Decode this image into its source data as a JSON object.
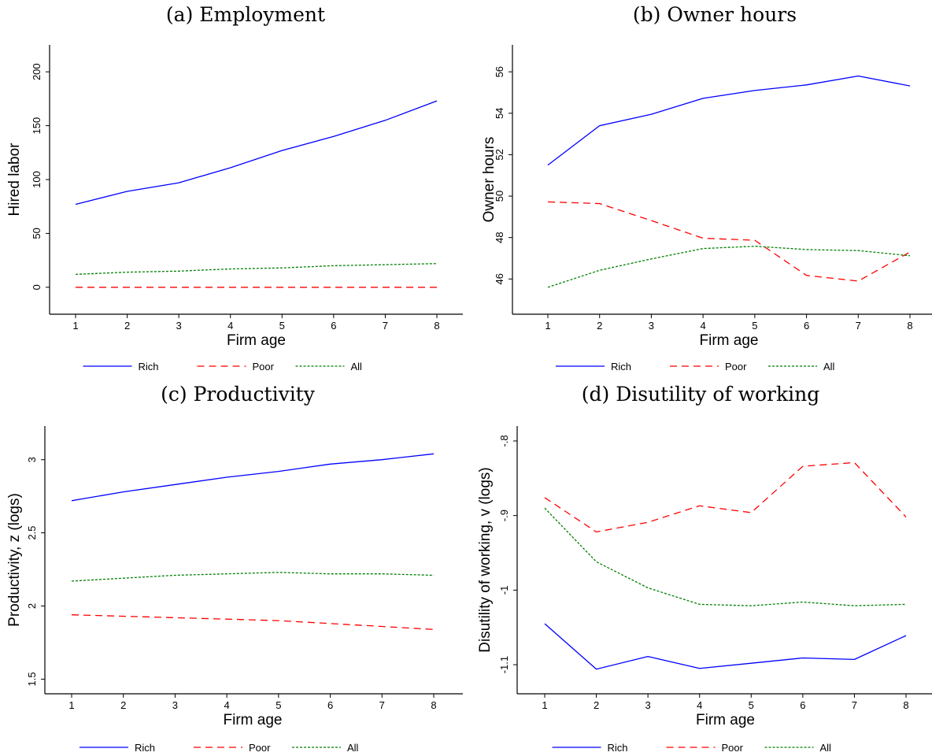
{
  "chart_data": [
    {
      "type": "line",
      "panel_title": "(a) Employment",
      "xlabel": "Firm age",
      "ylabel": "Hired labor",
      "x": [
        1,
        2,
        3,
        4,
        5,
        6,
        7,
        8
      ],
      "xticks": [
        "1",
        "2",
        "3",
        "4",
        "5",
        "6",
        "7",
        "8"
      ],
      "ylim": [
        -25,
        225
      ],
      "yticks": [
        0,
        50,
        100,
        150,
        200
      ],
      "ytick_labels": [
        "0",
        "50",
        "100",
        "150",
        "200"
      ],
      "grid": false,
      "legend_position": "bottom",
      "series": [
        {
          "name": "Rich",
          "color": "#0000ff",
          "style": "solid",
          "values": [
            77,
            89,
            97,
            111,
            127,
            140,
            155,
            173
          ]
        },
        {
          "name": "Poor",
          "color": "#ff0000",
          "style": "dashed",
          "values": [
            0,
            0,
            0,
            0,
            0,
            0,
            0,
            0
          ]
        },
        {
          "name": "All",
          "color": "#008000",
          "style": "dotted",
          "values": [
            12,
            14,
            15,
            17,
            18,
            20,
            21,
            22
          ]
        }
      ]
    },
    {
      "type": "line",
      "panel_title": "(b) Owner hours",
      "xlabel": "Firm age",
      "ylabel": "Owner hours",
      "x": [
        1,
        2,
        3,
        4,
        5,
        6,
        7,
        8
      ],
      "xticks": [
        "1",
        "2",
        "3",
        "4",
        "5",
        "6",
        "7",
        "8"
      ],
      "ylim": [
        44.3,
        57.3
      ],
      "yticks": [
        46,
        48,
        50,
        52,
        54,
        56
      ],
      "ytick_labels": [
        "46",
        "48",
        "50",
        "52",
        "54",
        "56"
      ],
      "grid": false,
      "legend_position": "bottom",
      "series": [
        {
          "name": "Rich",
          "color": "#0000ff",
          "style": "solid",
          "values": [
            51.5,
            53.4,
            53.95,
            54.72,
            55.1,
            55.37,
            55.8,
            55.32
          ]
        },
        {
          "name": "Poor",
          "color": "#ff0000",
          "style": "dashed",
          "values": [
            49.72,
            49.64,
            48.82,
            47.97,
            47.87,
            46.17,
            45.9,
            47.3
          ]
        },
        {
          "name": "All",
          "color": "#008000",
          "style": "dotted",
          "values": [
            45.6,
            46.42,
            46.97,
            47.47,
            47.58,
            47.42,
            47.37,
            47.12
          ]
        }
      ]
    },
    {
      "type": "line",
      "panel_title": "(c) Productivity",
      "xlabel": "Firm age",
      "ylabel": "Productivity, z (logs)",
      "x": [
        1,
        2,
        3,
        4,
        5,
        6,
        7,
        8
      ],
      "xticks": [
        "1",
        "2",
        "3",
        "4",
        "5",
        "6",
        "7",
        "8"
      ],
      "ylim": [
        1.4,
        3.23
      ],
      "yticks": [
        1.5,
        2,
        2.5,
        3
      ],
      "ytick_labels": [
        "1.5",
        "2",
        "2.5",
        "3"
      ],
      "grid": false,
      "legend_position": "bottom",
      "series": [
        {
          "name": "Rich",
          "color": "#0000ff",
          "style": "solid",
          "values": [
            2.72,
            2.78,
            2.83,
            2.88,
            2.92,
            2.97,
            3.0,
            3.04
          ]
        },
        {
          "name": "Poor",
          "color": "#ff0000",
          "style": "dashed",
          "values": [
            1.94,
            1.93,
            1.92,
            1.91,
            1.9,
            1.88,
            1.86,
            1.84
          ]
        },
        {
          "name": "All",
          "color": "#008000",
          "style": "dotted",
          "values": [
            2.17,
            2.19,
            2.21,
            2.22,
            2.23,
            2.22,
            2.22,
            2.21
          ]
        }
      ]
    },
    {
      "type": "line",
      "panel_title": "(d) Disutility of working",
      "xlabel": "Firm age",
      "ylabel": "Disutility of working, v (logs)",
      "x": [
        1,
        2,
        3,
        4,
        5,
        6,
        7,
        8
      ],
      "xticks": [
        "1",
        "2",
        "3",
        "4",
        "5",
        "6",
        "7",
        "8"
      ],
      "ylim": [
        -1.139,
        -0.78
      ],
      "yticks": [
        -1.1,
        -1,
        -0.9,
        -0.8
      ],
      "ytick_labels": [
        "-1.1",
        "-1",
        "-.9",
        "-.8"
      ],
      "grid": false,
      "legend_position": "bottom",
      "series": [
        {
          "name": "Rich",
          "color": "#0000ff",
          "style": "solid",
          "values": [
            -1.045,
            -1.106,
            -1.089,
            -1.105,
            -1.098,
            -1.091,
            -1.093,
            -1.061
          ]
        },
        {
          "name": "Poor",
          "color": "#ff0000",
          "style": "dashed",
          "values": [
            -0.876,
            -0.922,
            -0.909,
            -0.887,
            -0.896,
            -0.834,
            -0.829,
            -0.902
          ]
        },
        {
          "name": "All",
          "color": "#008000",
          "style": "dotted",
          "values": [
            -0.89,
            -0.962,
            -0.997,
            -1.019,
            -1.021,
            -1.016,
            -1.021,
            -1.019
          ]
        }
      ]
    }
  ]
}
